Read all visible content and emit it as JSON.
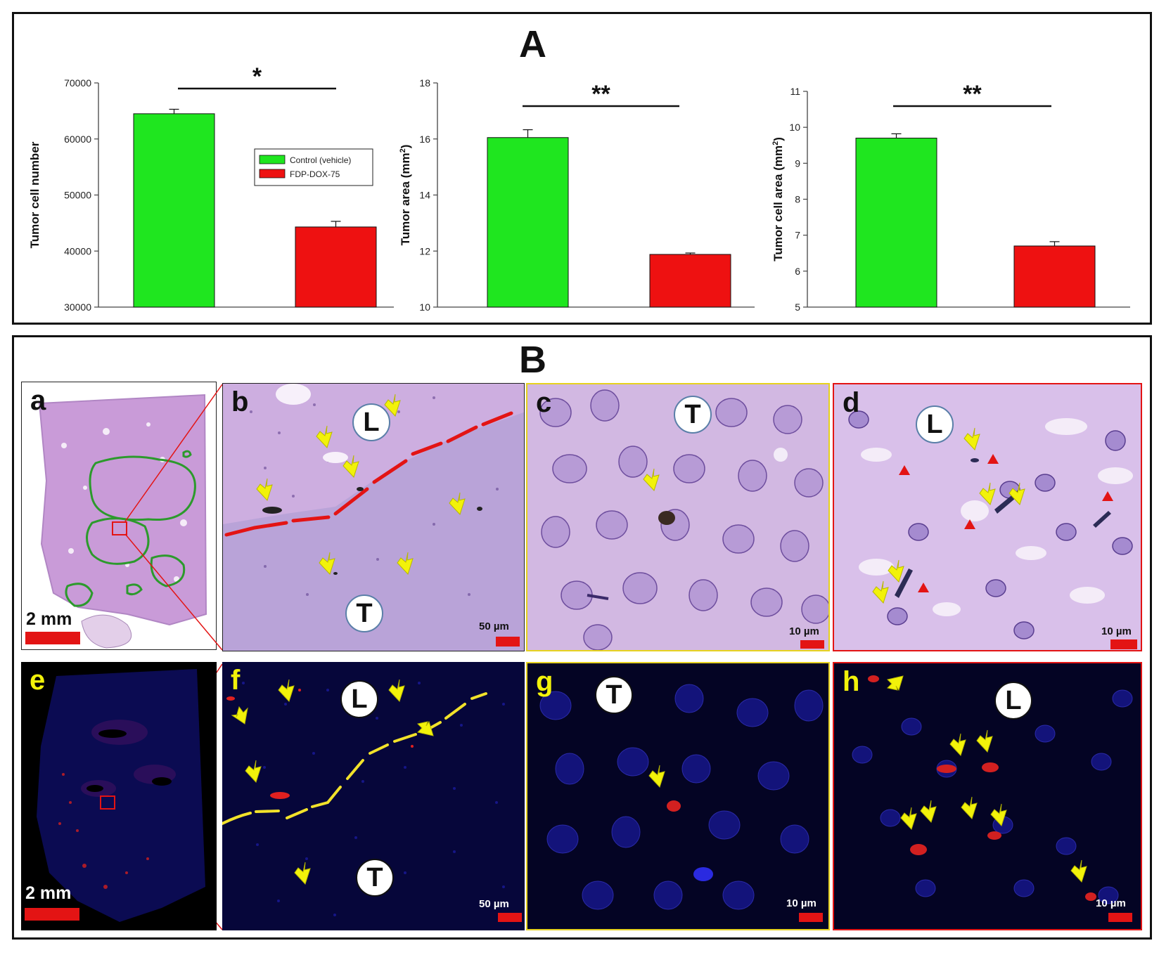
{
  "figure": {
    "panel_a_label": "A",
    "panel_b_label": "B"
  },
  "chart_data": [
    {
      "type": "bar",
      "categories": [
        "Control (vehicle)",
        "FDP-DOX-75"
      ],
      "values": [
        64500,
        44300
      ],
      "errors": [
        800,
        1000
      ],
      "colors": [
        "#1fe61f",
        "#ee1111"
      ],
      "ylabel": "Tumor cell number",
      "ylim": [
        30000,
        70000
      ],
      "yticks": [
        30000,
        40000,
        50000,
        60000,
        70000
      ],
      "significance": "*",
      "legend": {
        "entries": [
          "Control (vehicle)",
          "FDP-DOX-75"
        ],
        "colors": [
          "#1fe61f",
          "#ee1111"
        ]
      },
      "grid": false
    },
    {
      "type": "bar",
      "categories": [
        "Control (vehicle)",
        "FDP-DOX-75"
      ],
      "values": [
        16.05,
        11.88
      ],
      "errors": [
        0.28,
        0.05
      ],
      "colors": [
        "#1fe61f",
        "#ee1111"
      ],
      "ylabel": "Tumor area (mm",
      "ylabel_sup": "2",
      "ylabel_end": ")",
      "ylim": [
        10,
        18
      ],
      "yticks": [
        10,
        12,
        14,
        16,
        18
      ],
      "significance": "**",
      "grid": false
    },
    {
      "type": "bar",
      "categories": [
        "Control (vehicle)",
        "FDP-DOX-75"
      ],
      "values": [
        9.7,
        6.7
      ],
      "errors": [
        0.12,
        0.12
      ],
      "colors": [
        "#1fe61f",
        "#ee1111"
      ],
      "ylabel": "Tumor cell area (mm",
      "ylabel_sup": "2",
      "ylabel_end": ")",
      "ylim": [
        5,
        11
      ],
      "yticks": [
        5,
        6,
        7,
        8,
        9,
        10,
        11
      ],
      "significance": "**",
      "grid": false
    }
  ],
  "micrographs": {
    "a": {
      "letter": "a",
      "scale": "2 mm"
    },
    "b": {
      "letter": "b",
      "scale": "50 µm",
      "region_top": "L",
      "region_bottom": "T"
    },
    "c": {
      "letter": "c",
      "scale": "10 µm",
      "region": "T"
    },
    "d": {
      "letter": "d",
      "scale": "10 µm",
      "region": "L"
    },
    "e": {
      "letter": "e",
      "scale": "2 mm"
    },
    "f": {
      "letter": "f",
      "scale": "50 µm",
      "region_top": "L",
      "region_bottom": "T"
    },
    "g": {
      "letter": "g",
      "scale": "10 µm",
      "region": "T"
    },
    "h": {
      "letter": "h",
      "scale": "10 µm",
      "region": "L"
    }
  },
  "colors": {
    "control": "#1fe61f",
    "treated": "#ee1111",
    "arrow": "#f2f20a",
    "he_tissue": "#c79ad6",
    "fluor_background": "#04042e",
    "frame_c_g": "#e6d21f",
    "frame_d_h": "#e31414"
  }
}
